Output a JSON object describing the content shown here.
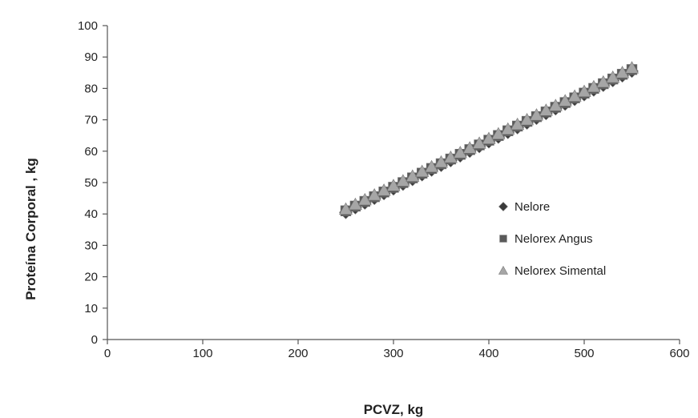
{
  "chart_data": {
    "type": "scatter",
    "title": "",
    "xlabel": "PCVZ, kg",
    "ylabel": "Proteína Corporal , kg",
    "xlim": [
      0,
      600
    ],
    "ylim": [
      0,
      100
    ],
    "xticks": [
      0,
      100,
      200,
      300,
      400,
      500,
      600
    ],
    "yticks": [
      0,
      10,
      20,
      30,
      40,
      50,
      60,
      70,
      80,
      90,
      100
    ],
    "grid": false,
    "legend_position": "right",
    "series": [
      {
        "name": "Nelore",
        "marker": "diamond",
        "color": "#3a3a3a",
        "x": [
          250,
          260,
          270,
          280,
          290,
          300,
          310,
          320,
          330,
          340,
          350,
          360,
          370,
          380,
          390,
          400,
          410,
          420,
          430,
          440,
          450,
          460,
          470,
          480,
          490,
          500,
          510,
          520,
          530,
          540,
          550
        ],
        "y": [
          40.5,
          42.0,
          43.5,
          45.0,
          46.5,
          48.0,
          49.5,
          51.0,
          52.5,
          54.0,
          55.5,
          57.0,
          58.5,
          60.0,
          61.5,
          63.0,
          64.5,
          66.0,
          67.5,
          69.0,
          70.5,
          72.0,
          73.5,
          75.0,
          76.5,
          78.0,
          79.5,
          81.0,
          82.5,
          84.0,
          85.5
        ]
      },
      {
        "name": "Nelorex Angus",
        "marker": "square",
        "color": "#5a5a5a",
        "x": [
          250,
          260,
          270,
          280,
          290,
          300,
          310,
          320,
          330,
          340,
          350,
          360,
          370,
          380,
          390,
          400,
          410,
          420,
          430,
          440,
          450,
          460,
          470,
          480,
          490,
          500,
          510,
          520,
          530,
          540,
          550
        ],
        "y": [
          41.0,
          42.5,
          44.0,
          45.5,
          47.0,
          48.5,
          50.0,
          51.5,
          53.0,
          54.5,
          56.0,
          57.5,
          59.0,
          60.5,
          62.0,
          63.5,
          65.0,
          66.5,
          68.0,
          69.5,
          71.0,
          72.5,
          74.0,
          75.5,
          77.0,
          78.5,
          80.0,
          81.5,
          83.0,
          84.5,
          86.0
        ]
      },
      {
        "name": "Nelorex Simental",
        "marker": "triangle",
        "color": "#a6a6a6",
        "x": [
          250,
          260,
          270,
          280,
          290,
          300,
          310,
          320,
          330,
          340,
          350,
          360,
          370,
          380,
          390,
          400,
          410,
          420,
          430,
          440,
          450,
          460,
          470,
          480,
          490,
          500,
          510,
          520,
          530,
          540,
          550
        ],
        "y": [
          41.5,
          43.0,
          44.5,
          46.0,
          47.5,
          49.0,
          50.5,
          52.0,
          53.5,
          55.0,
          56.5,
          58.0,
          59.5,
          61.0,
          62.5,
          64.0,
          65.5,
          67.0,
          68.5,
          70.0,
          71.5,
          73.0,
          74.5,
          76.0,
          77.5,
          79.0,
          80.5,
          82.0,
          83.5,
          85.0,
          86.5
        ]
      }
    ]
  }
}
